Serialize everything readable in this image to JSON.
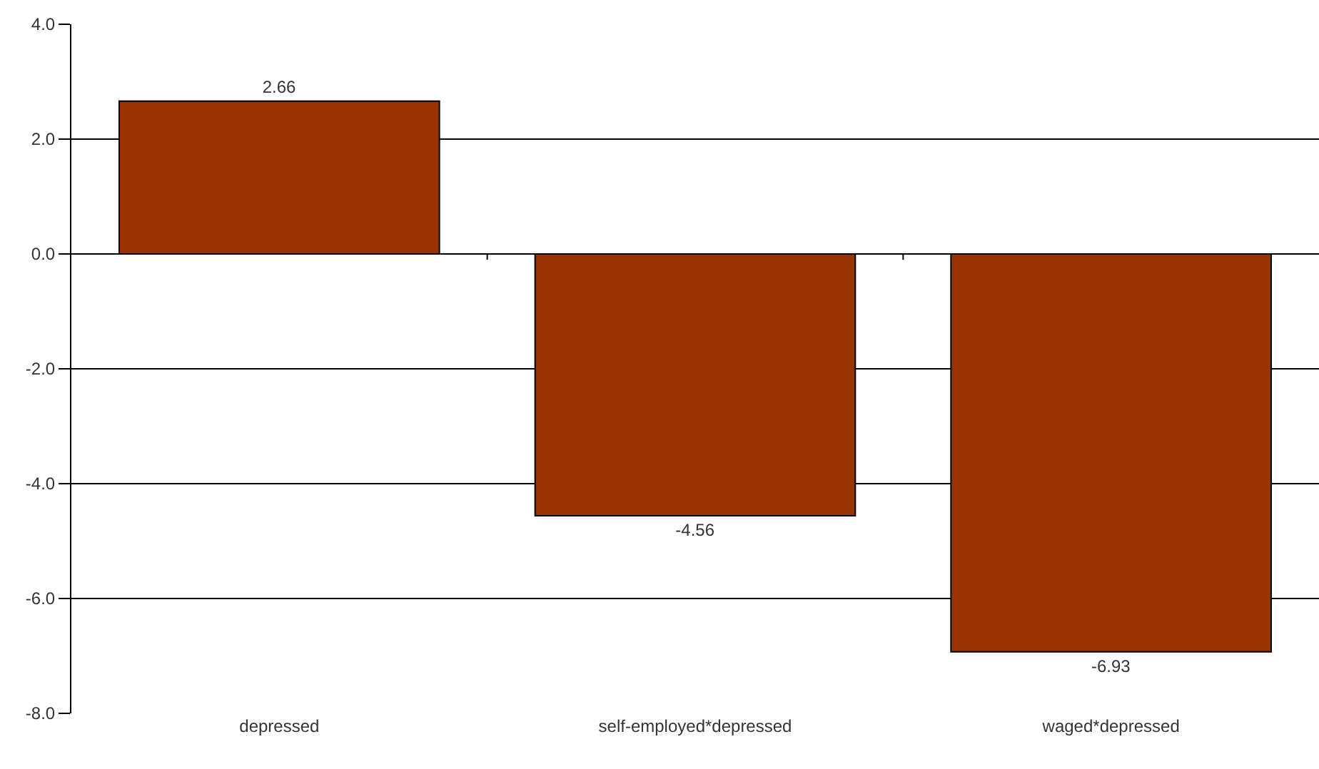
{
  "chart_data": {
    "type": "bar",
    "categories": [
      "depressed",
      "self-employed*depressed",
      "waged*depressed"
    ],
    "values": [
      2.66,
      -4.56,
      -6.93
    ],
    "color": "#993300",
    "data_labels": true,
    "ylim": [
      -8,
      4
    ],
    "yticks": [
      {
        "value": -8,
        "label": "-8.0"
      },
      {
        "value": -6,
        "label": "-6.0"
      },
      {
        "value": -4,
        "label": "-4.0"
      },
      {
        "value": -2,
        "label": "-2.0"
      },
      {
        "value": 0,
        "label": "0.0"
      },
      {
        "value": 2,
        "label": "2.0"
      },
      {
        "value": 4,
        "label": "4.0"
      }
    ],
    "grid": "y",
    "legend": false
  }
}
